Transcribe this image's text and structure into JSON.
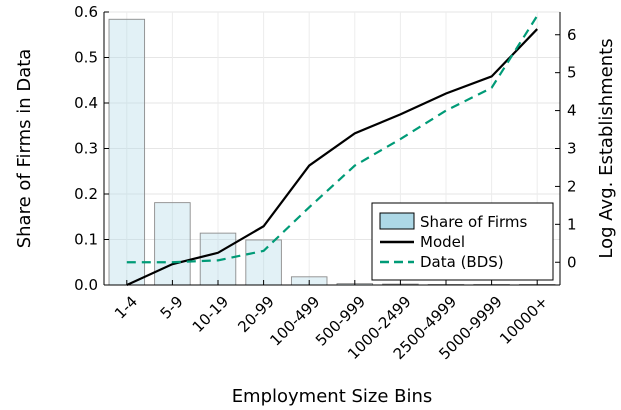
{
  "chart_data": {
    "type": "bar+line",
    "categories": [
      "1-4",
      "5-9",
      "10-19",
      "20-99",
      "100-499",
      "500-999",
      "1000-2499",
      "2500-4999",
      "5000-9999",
      "10000+"
    ],
    "xlabel": "Employment Size Bins",
    "ylabel_left": "Share of Firms in Data",
    "ylabel_right": "Log Avg. Establishments",
    "ylim_left": [
      0,
      0.6
    ],
    "yticks_left": [
      0.0,
      0.1,
      0.2,
      0.3,
      0.4,
      0.5,
      0.6
    ],
    "ytick_labels_left": [
      "0.0",
      "0.1",
      "0.2",
      "0.3",
      "0.4",
      "0.5",
      "0.6"
    ],
    "ylim_right": [
      -0.6,
      6.6
    ],
    "yticks_right": [
      0,
      1,
      2,
      3,
      4,
      5,
      6
    ],
    "ytick_labels_right": [
      "0",
      "1",
      "2",
      "3",
      "4",
      "5",
      "6"
    ],
    "grid": true,
    "legend_position": "bottom-right",
    "bars": {
      "name": "Share of Firms",
      "axis": "left",
      "values": [
        0.584,
        0.181,
        0.114,
        0.099,
        0.018,
        0.003,
        0.002,
        0.001,
        0.001,
        0.001
      ],
      "color": "#add8e6"
    },
    "series": [
      {
        "name": "Model",
        "axis": "right",
        "style": "solid",
        "color": "#000000",
        "values": [
          -0.6,
          -0.05,
          0.25,
          0.95,
          2.55,
          3.4,
          3.9,
          4.45,
          4.9,
          6.15
        ]
      },
      {
        "name": "Data (BDS)",
        "axis": "right",
        "style": "dashed",
        "color": "#009b77",
        "values": [
          0.0,
          0.0,
          0.05,
          0.3,
          1.45,
          2.55,
          3.25,
          4.0,
          4.6,
          6.5
        ]
      }
    ]
  }
}
